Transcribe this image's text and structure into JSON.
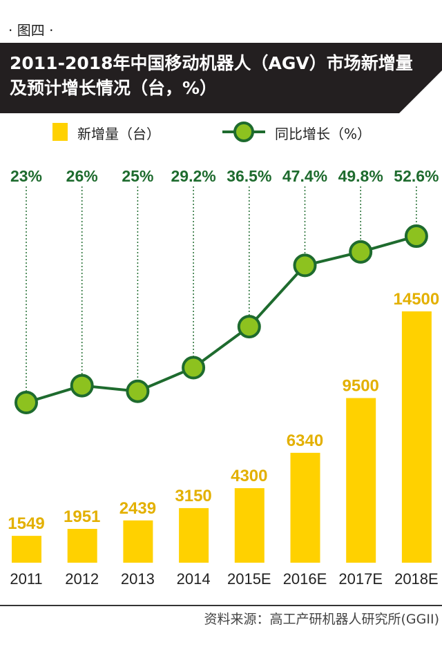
{
  "figure_label": "· 图四 ·",
  "source": "资料来源：高工产研机器人研究所(GGII)",
  "colors": {
    "bar": "#FFD100",
    "bar_label": "#E3B000",
    "line": "#1E6B2E",
    "marker_fill": "#8DC21F",
    "pct_label": "#1E6B2E",
    "banner": "#231F20"
  },
  "chart_data": {
    "type": "bar+line",
    "title": "2011-2018年中国移动机器人（AGV）市场新增量及预计增长情况（台，%）",
    "categories": [
      "2011",
      "2012",
      "2013",
      "2014",
      "2015E",
      "2016E",
      "2017E",
      "2018E"
    ],
    "series": [
      {
        "name": "新增量（台）",
        "type": "bar",
        "values": [
          1549,
          1951,
          2439,
          3150,
          4300,
          6340,
          9500,
          14500
        ],
        "labels": [
          "1549",
          "1951",
          "2439",
          "3150",
          "4300",
          "6340",
          "9500",
          "14500"
        ]
      },
      {
        "name": "同比增长（%）",
        "type": "line",
        "values": [
          23,
          26,
          25,
          29.2,
          36.5,
          47.4,
          49.8,
          52.6
        ],
        "labels": [
          "23%",
          "26%",
          "25%",
          "29.2%",
          "36.5%",
          "47.4%",
          "49.8%",
          "52.6%"
        ]
      }
    ],
    "legend_position": "top",
    "grid": false
  }
}
